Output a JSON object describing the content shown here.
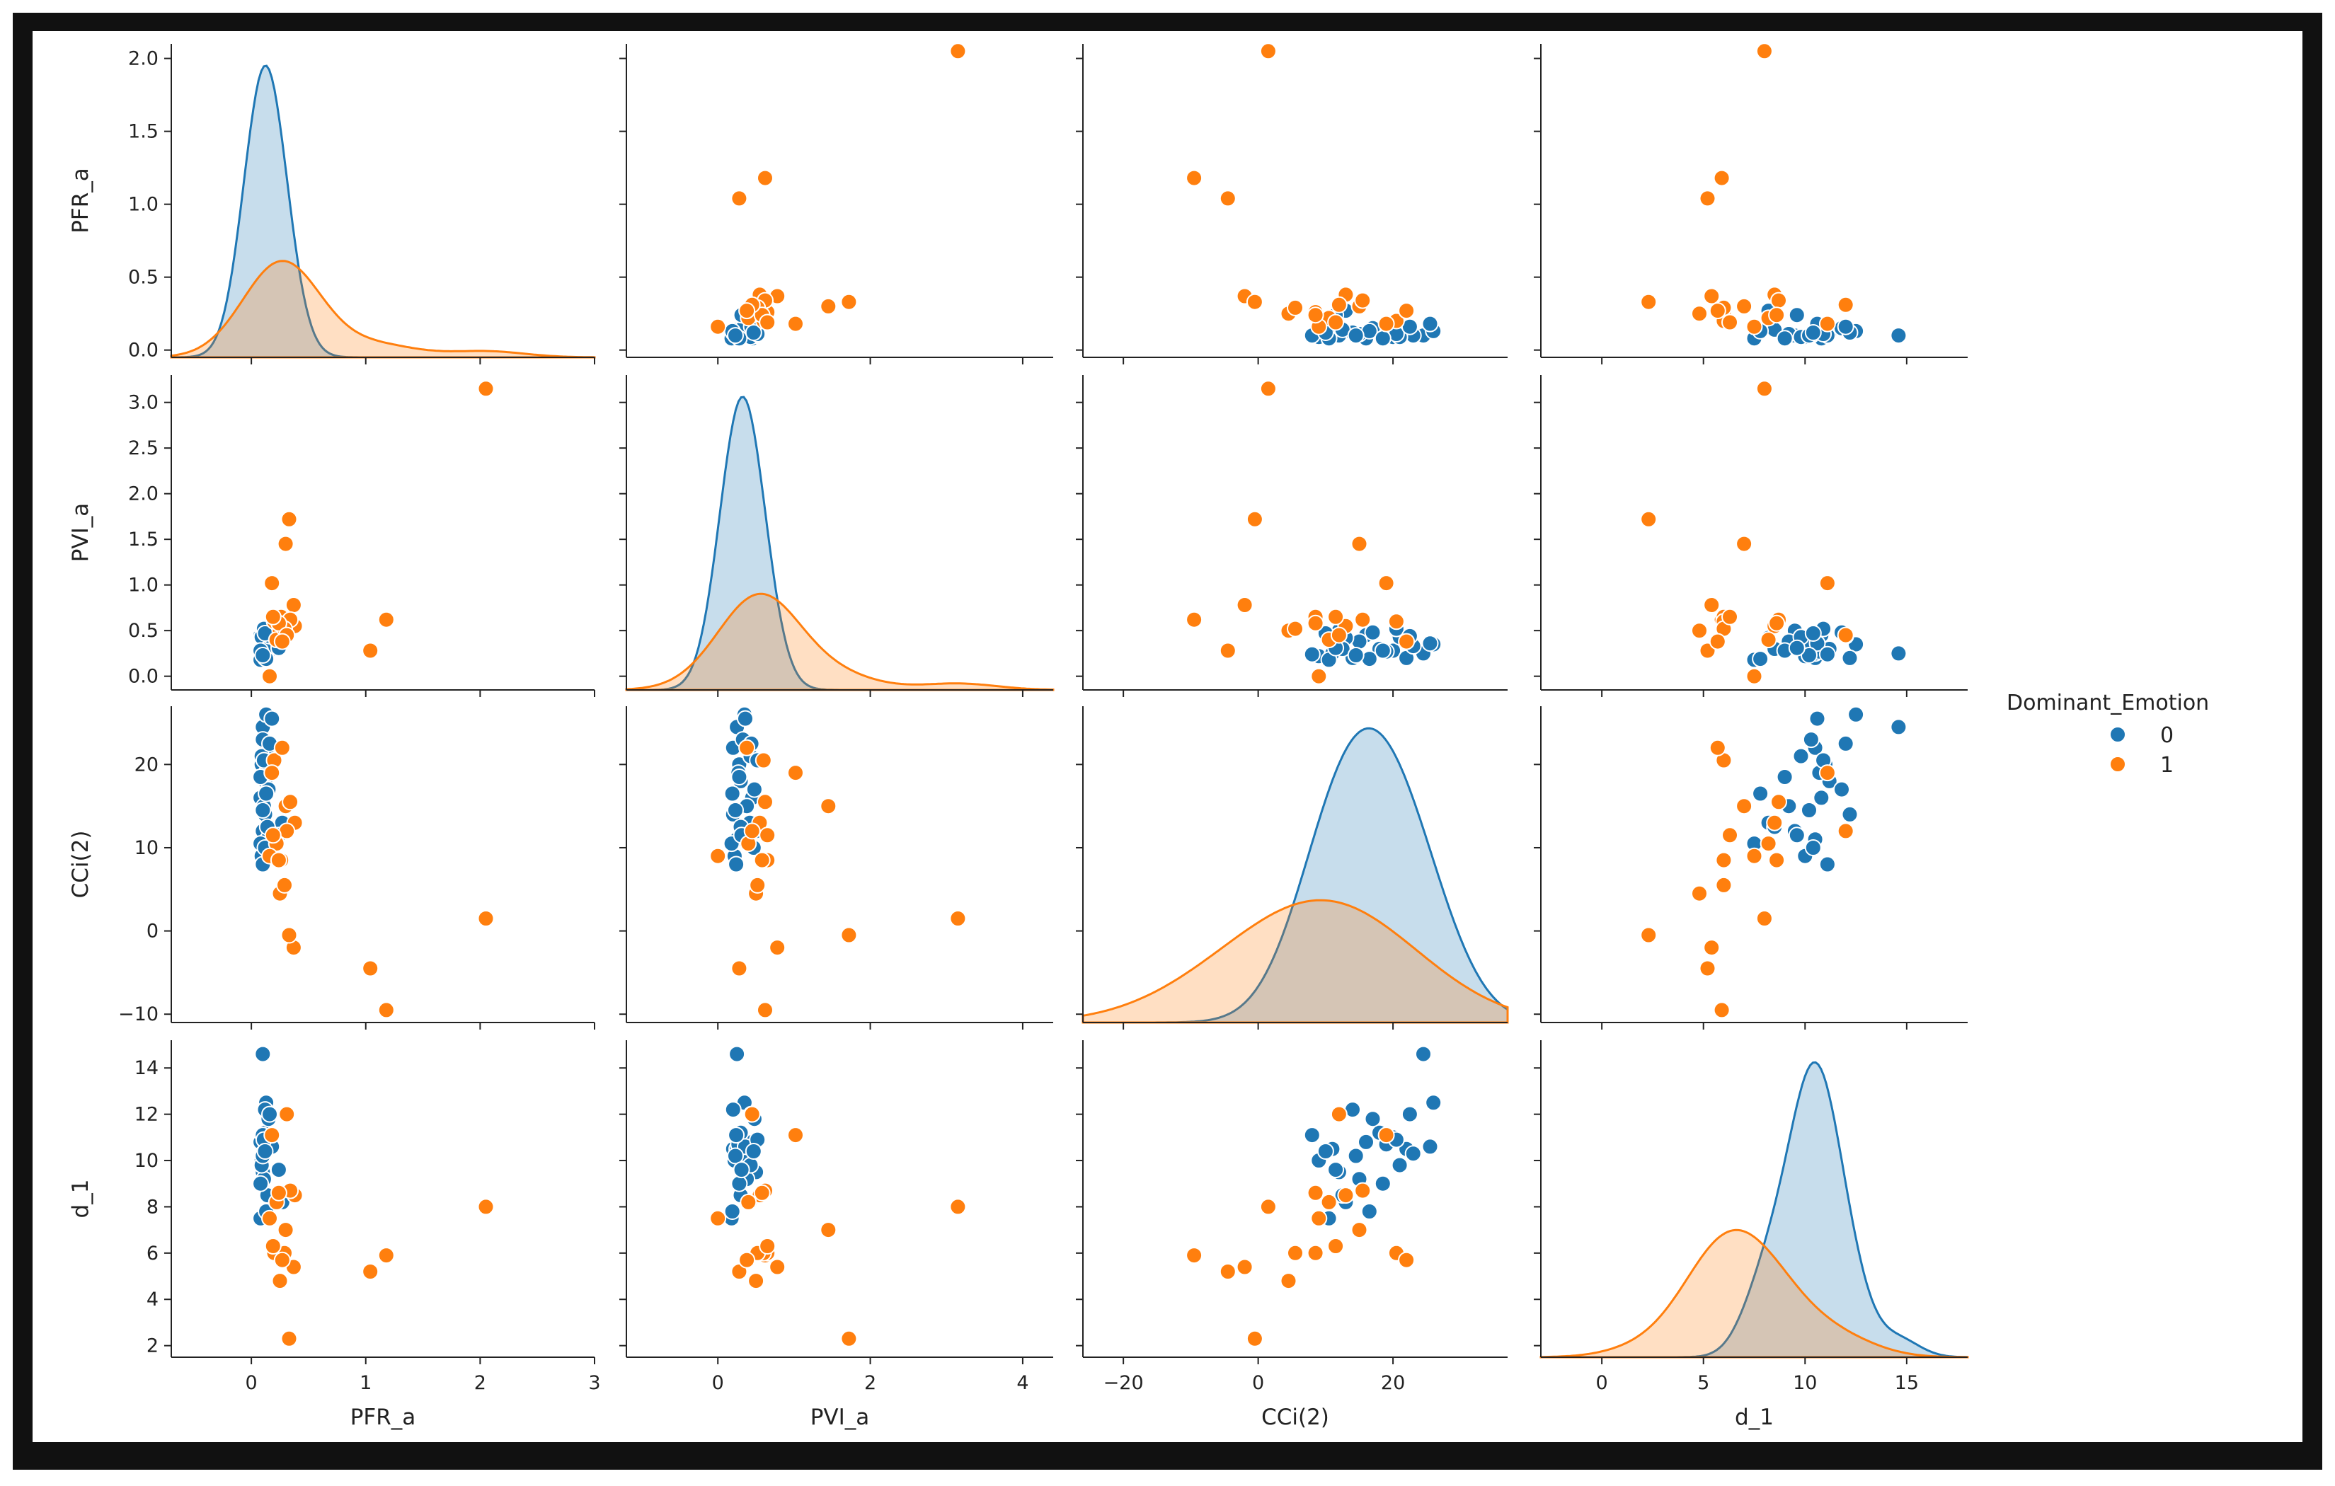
{
  "chart_data": {
    "type": "scatter",
    "subtype": "pairplot",
    "variables": [
      "PFR_a",
      "PVI_a",
      "CCi(2)",
      "d_1"
    ],
    "hue": "Dominant_Emotion",
    "legend": {
      "title": "Dominant_Emotion",
      "entries": [
        {
          "label": "0",
          "color": "#1f77b4"
        },
        {
          "label": "1",
          "color": "#ff7f0e"
        }
      ],
      "placement": "right"
    },
    "axes": {
      "PFR_a": {
        "label": "PFR_a",
        "lim": [
          -0.7,
          3.0
        ],
        "ticks": [
          0,
          1,
          2,
          3
        ],
        "ylim": [
          -0.05,
          2.1
        ],
        "yticks": [
          0.0,
          0.5,
          1.0,
          1.5,
          2.0
        ],
        "ytick_labels": [
          "0.0",
          "0.5",
          "1.0",
          "1.5",
          "2.0"
        ]
      },
      "PVI_a": {
        "label": "PVI_a",
        "lim": [
          -1.2,
          4.4
        ],
        "ticks": [
          0,
          2,
          4
        ],
        "ylim": [
          -0.15,
          3.3
        ],
        "yticks": [
          0.0,
          0.5,
          1.0,
          1.5,
          2.0,
          2.5,
          3.0
        ],
        "ytick_labels": [
          "0.0",
          "0.5",
          "1.0",
          "1.5",
          "2.0",
          "2.5",
          "3.0"
        ]
      },
      "CCi(2)": {
        "label": "CCi(2)",
        "lim": [
          -26,
          37
        ],
        "ticks": [
          -20,
          0,
          20
        ],
        "tick_labels": [
          "−20",
          "0",
          "20"
        ],
        "ylim": [
          -11,
          27
        ],
        "yticks": [
          -10,
          0,
          10,
          20
        ],
        "ytick_labels": [
          "−10",
          "0",
          "10",
          "20"
        ]
      },
      "d_1": {
        "label": "d_1",
        "lim": [
          -3,
          18
        ],
        "ticks": [
          0,
          5,
          10,
          15
        ],
        "ylim": [
          1.5,
          15.2
        ],
        "yticks": [
          2,
          4,
          6,
          8,
          10,
          12,
          14
        ],
        "ytick_labels": [
          "2",
          "4",
          "6",
          "8",
          "10",
          "12",
          "14"
        ]
      }
    },
    "series": [
      {
        "name": "0",
        "color": "#1f77b4",
        "points": [
          [
            0.1,
            0.25,
            24.5,
            14.6
          ],
          [
            0.13,
            0.35,
            26.0,
            12.5
          ],
          [
            0.09,
            0.28,
            20.0,
            11.0
          ],
          [
            0.14,
            0.2,
            22.0,
            10.5
          ],
          [
            0.08,
            0.45,
            16.0,
            10.8
          ],
          [
            0.12,
            0.3,
            18.0,
            11.2
          ],
          [
            0.1,
            0.5,
            12.0,
            9.5
          ],
          [
            0.09,
            0.22,
            9.0,
            10.0
          ],
          [
            0.14,
            0.25,
            11.0,
            10.5
          ],
          [
            0.11,
            0.38,
            15.0,
            9.2
          ],
          [
            0.27,
            0.42,
            13.0,
            8.2
          ],
          [
            0.08,
            0.18,
            10.5,
            7.5
          ],
          [
            0.13,
            0.27,
            19.0,
            10.7
          ],
          [
            0.1,
            0.33,
            23.0,
            10.3
          ],
          [
            0.15,
            0.48,
            17.0,
            11.8
          ],
          [
            0.12,
            0.2,
            14.0,
            12.2
          ],
          [
            0.09,
            0.43,
            21.0,
            9.8
          ],
          [
            0.18,
            0.36,
            25.5,
            10.6
          ],
          [
            0.1,
            0.24,
            8.0,
            11.1
          ],
          [
            0.14,
            0.3,
            12.5,
            8.5
          ],
          [
            0.11,
            0.52,
            20.5,
            10.9
          ],
          [
            0.13,
            0.19,
            16.5,
            7.8
          ],
          [
            0.08,
            0.28,
            18.5,
            9.0
          ],
          [
            0.16,
            0.44,
            22.5,
            12.0
          ],
          [
            0.1,
            0.23,
            14.5,
            10.2
          ],
          [
            0.24,
            0.31,
            11.5,
            9.6
          ],
          [
            0.12,
            0.47,
            10.0,
            10.4
          ]
        ]
      },
      {
        "name": "1",
        "color": "#ff7f0e",
        "points": [
          [
            2.05,
            3.15,
            1.5,
            8.0
          ],
          [
            1.18,
            0.62,
            -9.5,
            5.9
          ],
          [
            1.04,
            0.28,
            -4.5,
            5.2
          ],
          [
            0.37,
            0.78,
            -2.0,
            5.4
          ],
          [
            0.33,
            1.72,
            -0.5,
            2.3
          ],
          [
            0.3,
            1.45,
            15.0,
            7.0
          ],
          [
            0.26,
            0.65,
            8.5,
            6.0
          ],
          [
            0.38,
            0.55,
            13.0,
            8.5
          ],
          [
            0.2,
            0.6,
            20.5,
            6.0
          ],
          [
            0.18,
            1.02,
            19.0,
            11.1
          ],
          [
            0.25,
            0.5,
            4.5,
            4.8
          ],
          [
            0.34,
            0.62,
            15.5,
            8.7
          ],
          [
            0.22,
            0.4,
            10.5,
            8.2
          ],
          [
            0.16,
            0.0,
            9.0,
            7.5
          ],
          [
            0.29,
            0.52,
            5.5,
            6.0
          ],
          [
            0.24,
            0.58,
            8.5,
            8.6
          ],
          [
            0.31,
            0.45,
            12.0,
            12.0
          ],
          [
            0.19,
            0.65,
            11.5,
            6.3
          ],
          [
            0.27,
            0.38,
            22.0,
            5.7
          ]
        ]
      }
    ],
    "diagonal": "kde"
  }
}
